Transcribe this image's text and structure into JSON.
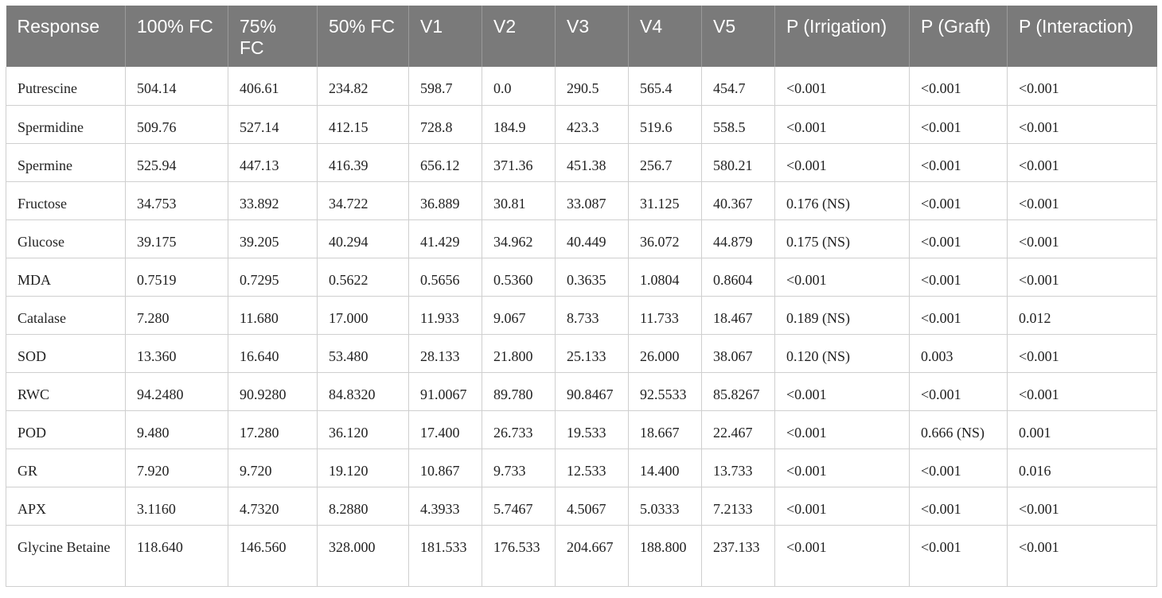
{
  "table": {
    "headers": [
      "Response",
      "100% FC",
      "75% FC",
      "50% FC",
      "V1",
      "V2",
      "V3",
      "V4",
      "V5",
      "P (Irrigation)",
      "P (Graft)",
      "P (Interaction)"
    ],
    "rows": [
      [
        "Putrescine",
        "504.14",
        "406.61",
        "234.82",
        "598.7",
        "0.0",
        "290.5",
        "565.4",
        "454.7",
        "<0.001",
        "<0.001",
        "<0.001"
      ],
      [
        "Spermidine",
        "509.76",
        "527.14",
        "412.15",
        "728.8",
        "184.9",
        "423.3",
        "519.6",
        "558.5",
        "<0.001",
        "<0.001",
        "<0.001"
      ],
      [
        "Spermine",
        "525.94",
        "447.13",
        "416.39",
        "656.12",
        "371.36",
        "451.38",
        "256.7",
        "580.21",
        "<0.001",
        "<0.001",
        "<0.001"
      ],
      [
        "Fructose",
        "34.753",
        "33.892",
        "34.722",
        "36.889",
        "30.81",
        "33.087",
        "31.125",
        "40.367",
        "0.176 (NS)",
        "<0.001",
        "<0.001"
      ],
      [
        "Glucose",
        "39.175",
        "39.205",
        "40.294",
        "41.429",
        "34.962",
        "40.449",
        "36.072",
        "44.879",
        "0.175 (NS)",
        "<0.001",
        "<0.001"
      ],
      [
        "MDA",
        "0.7519",
        "0.7295",
        "0.5622",
        "0.5656",
        "0.5360",
        "0.3635",
        "1.0804",
        "0.8604",
        "<0.001",
        "<0.001",
        "<0.001"
      ],
      [
        "Catalase",
        "7.280",
        "11.680",
        "17.000",
        "11.933",
        "9.067",
        "8.733",
        "11.733",
        "18.467",
        "0.189 (NS)",
        "<0.001",
        "0.012"
      ],
      [
        "SOD",
        "13.360",
        "16.640",
        "53.480",
        "28.133",
        "21.800",
        "25.133",
        "26.000",
        "38.067",
        "0.120 (NS)",
        "0.003",
        "<0.001"
      ],
      [
        "RWC",
        "94.2480",
        "90.9280",
        "84.8320",
        "91.0067",
        "89.780",
        "90.8467",
        "92.5533",
        "85.8267",
        "<0.001",
        "<0.001",
        "<0.001"
      ],
      [
        "POD",
        "9.480",
        "17.280",
        "36.120",
        "17.400",
        "26.733",
        "19.533",
        "18.667",
        "22.467",
        "<0.001",
        "0.666 (NS)",
        "0.001"
      ],
      [
        "GR",
        "7.920",
        "9.720",
        "19.120",
        "10.867",
        "9.733",
        "12.533",
        "14.400",
        "13.733",
        "<0.001",
        "<0.001",
        "0.016"
      ],
      [
        "APX",
        "3.1160",
        "4.7320",
        "8.2880",
        "4.3933",
        "5.7467",
        "4.5067",
        "5.0333",
        "7.2133",
        "<0.001",
        "<0.001",
        "<0.001"
      ],
      [
        "Glycine Betaine",
        "118.640",
        "146.560",
        "328.000",
        "181.533",
        "176.533",
        "204.667",
        "188.800",
        "237.133",
        "<0.001",
        "<0.001",
        "<0.001"
      ]
    ]
  },
  "colors": {
    "header_bg": "#7a7a7a",
    "header_text": "#ffffff",
    "grid": "#cfcfcf"
  }
}
